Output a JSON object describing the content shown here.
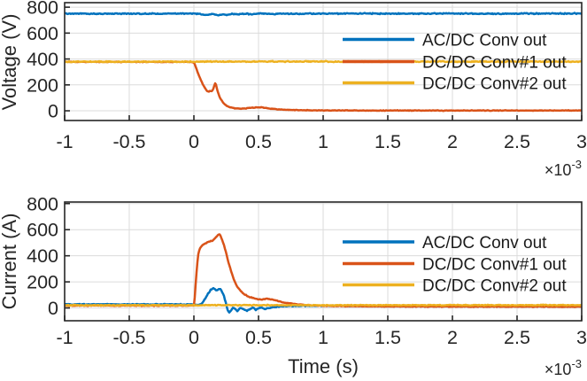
{
  "figure": {
    "background": "#ffffff",
    "axis_color": "#262626",
    "grid_color": "#dbdbdb",
    "tick_label_color": "#262626",
    "legend_text_color": "#1a1a1a"
  },
  "chart_data": [
    {
      "type": "line",
      "title": "",
      "ylabel": "Voltage (V)",
      "xlabel": "",
      "xlim": [
        -1,
        3
      ],
      "ylim": [
        -75,
        835
      ],
      "x_ticks": [
        -1,
        -0.5,
        0,
        0.5,
        1,
        1.5,
        2,
        2.5,
        3
      ],
      "x_tick_labels": [
        "-1",
        "-0.5",
        "0",
        "0.5",
        "1",
        "1.5",
        "2",
        "2.5",
        "3"
      ],
      "y_ticks": [
        0,
        200,
        400,
        600,
        800
      ],
      "y_tick_labels": [
        "0",
        "200",
        "400",
        "600",
        "800"
      ],
      "x_exponent": {
        "base": "×10",
        "power": "-3"
      },
      "x_unit": "seconds (axis values scaled by 1e-3)",
      "grid": true,
      "legend_position": "upper-right-inside",
      "series": [
        {
          "name": "AC/DC Conv out",
          "color": "#0072BD",
          "noise": 5,
          "points": [
            [
              -1,
              751
            ],
            [
              -0.7,
              749
            ],
            [
              -0.4,
              751
            ],
            [
              -0.2,
              750
            ],
            [
              -0.1,
              752
            ],
            [
              0,
              750
            ],
            [
              0.05,
              746
            ],
            [
              0.1,
              741
            ],
            [
              0.14,
              748
            ],
            [
              0.18,
              737
            ],
            [
              0.22,
              746
            ],
            [
              0.26,
              741
            ],
            [
              0.3,
              748
            ],
            [
              0.34,
              744
            ],
            [
              0.38,
              750
            ],
            [
              0.45,
              746
            ],
            [
              0.52,
              751
            ],
            [
              0.6,
              748
            ],
            [
              0.7,
              750
            ],
            [
              0.8,
              749
            ],
            [
              1,
              750
            ],
            [
              1.3,
              751
            ],
            [
              1.6,
              750
            ],
            [
              2,
              751
            ],
            [
              2.4,
              750
            ],
            [
              2.7,
              751
            ],
            [
              3,
              752
            ]
          ]
        },
        {
          "name": "DC/DC Conv#1 out",
          "color": "#D95319",
          "noise": 3,
          "points": [
            [
              -1,
              378
            ],
            [
              -0.05,
              378
            ],
            [
              0,
              374
            ],
            [
              0.01,
              352
            ],
            [
              0.02,
              322
            ],
            [
              0.035,
              282
            ],
            [
              0.05,
              246
            ],
            [
              0.065,
              213
            ],
            [
              0.08,
              184
            ],
            [
              0.095,
              161
            ],
            [
              0.105,
              151
            ],
            [
              0.115,
              147
            ],
            [
              0.125,
              157
            ],
            [
              0.132,
              150
            ],
            [
              0.14,
              153
            ],
            [
              0.15,
              170
            ],
            [
              0.158,
              193
            ],
            [
              0.165,
              215
            ],
            [
              0.172,
              200
            ],
            [
              0.18,
              163
            ],
            [
              0.19,
              130
            ],
            [
              0.2,
              105
            ],
            [
              0.215,
              78
            ],
            [
              0.23,
              58
            ],
            [
              0.25,
              40
            ],
            [
              0.27,
              30
            ],
            [
              0.3,
              22
            ],
            [
              0.33,
              17
            ],
            [
              0.36,
              16
            ],
            [
              0.4,
              19
            ],
            [
              0.44,
              23
            ],
            [
              0.48,
              26
            ],
            [
              0.52,
              26
            ],
            [
              0.56,
              22
            ],
            [
              0.6,
              16
            ],
            [
              0.65,
              11
            ],
            [
              0.7,
              8
            ],
            [
              0.8,
              5
            ],
            [
              0.9,
              4
            ],
            [
              1,
              3
            ],
            [
              1.5,
              2
            ],
            [
              2,
              2
            ],
            [
              2.5,
              2
            ],
            [
              3,
              2
            ]
          ]
        },
        {
          "name": "DC/DC Conv#2 out",
          "color": "#EDB120",
          "noise": 5,
          "points": [
            [
              -1,
              379
            ],
            [
              1,
              380
            ],
            [
              3,
              380
            ]
          ]
        }
      ]
    },
    {
      "type": "line",
      "title": "",
      "ylabel": "Current (A)",
      "xlabel": "Time (s)",
      "xlim": [
        -1,
        3
      ],
      "ylim": [
        -98,
        812
      ],
      "x_ticks": [
        -1,
        -0.5,
        0,
        0.5,
        1,
        1.5,
        2,
        2.5,
        3
      ],
      "x_tick_labels": [
        "-1",
        "-0.5",
        "0",
        "0.5",
        "1",
        "1.5",
        "2",
        "2.5",
        "3"
      ],
      "y_ticks": [
        0,
        200,
        400,
        600,
        800
      ],
      "y_tick_labels": [
        "0",
        "200",
        "400",
        "600",
        "800"
      ],
      "x_exponent": {
        "base": "×10",
        "power": "-3"
      },
      "x_unit": "seconds (axis values scaled by 1e-3)",
      "grid": true,
      "legend_position": "upper-right-inside",
      "series": [
        {
          "name": "AC/DC Conv out",
          "color": "#0072BD",
          "noise": 4,
          "points": [
            [
              -1,
              28
            ],
            [
              -0.3,
              28
            ],
            [
              0,
              27
            ],
            [
              0.03,
              22
            ],
            [
              0.05,
              25
            ],
            [
              0.07,
              45
            ],
            [
              0.09,
              75
            ],
            [
              0.11,
              110
            ],
            [
              0.13,
              140
            ],
            [
              0.15,
              152
            ],
            [
              0.165,
              140
            ],
            [
              0.18,
              133
            ],
            [
              0.195,
              146
            ],
            [
              0.21,
              142
            ],
            [
              0.23,
              100
            ],
            [
              0.25,
              30
            ],
            [
              0.262,
              -20
            ],
            [
              0.275,
              -35
            ],
            [
              0.29,
              -15
            ],
            [
              0.305,
              3
            ],
            [
              0.32,
              -10
            ],
            [
              0.335,
              -28
            ],
            [
              0.35,
              -10
            ],
            [
              0.365,
              4
            ],
            [
              0.38,
              -8
            ],
            [
              0.41,
              -22
            ],
            [
              0.44,
              -5
            ],
            [
              0.46,
              2
            ],
            [
              0.48,
              -15
            ],
            [
              0.5,
              -3
            ],
            [
              0.52,
              2
            ],
            [
              0.55,
              -8
            ],
            [
              0.58,
              0
            ],
            [
              0.62,
              6
            ],
            [
              0.68,
              12
            ],
            [
              0.75,
              15
            ],
            [
              0.85,
              17
            ],
            [
              1,
              17
            ],
            [
              1.5,
              16
            ],
            [
              2,
              16
            ],
            [
              2.5,
              17
            ],
            [
              3,
              17
            ]
          ]
        },
        {
          "name": "DC/DC Conv#1 out",
          "color": "#D95319",
          "noise": 4,
          "points": [
            [
              -1,
              18
            ],
            [
              -0.05,
              18
            ],
            [
              0,
              20
            ],
            [
              0.005,
              60
            ],
            [
              0.015,
              200
            ],
            [
              0.025,
              330
            ],
            [
              0.035,
              420
            ],
            [
              0.05,
              462
            ],
            [
              0.065,
              480
            ],
            [
              0.08,
              492
            ],
            [
              0.1,
              500
            ],
            [
              0.12,
              508
            ],
            [
              0.13,
              515
            ],
            [
              0.14,
              512
            ],
            [
              0.15,
              520
            ],
            [
              0.16,
              528
            ],
            [
              0.17,
              542
            ],
            [
              0.18,
              548
            ],
            [
              0.19,
              562
            ],
            [
              0.2,
              565
            ],
            [
              0.21,
              545
            ],
            [
              0.23,
              490
            ],
            [
              0.25,
              420
            ],
            [
              0.27,
              340
            ],
            [
              0.29,
              275
            ],
            [
              0.31,
              215
            ],
            [
              0.33,
              170
            ],
            [
              0.36,
              130
            ],
            [
              0.39,
              105
            ],
            [
              0.42,
              88
            ],
            [
              0.45,
              78
            ],
            [
              0.48,
              70
            ],
            [
              0.52,
              66
            ],
            [
              0.56,
              70
            ],
            [
              0.6,
              67
            ],
            [
              0.64,
              57
            ],
            [
              0.68,
              46
            ],
            [
              0.72,
              38
            ],
            [
              0.78,
              30
            ],
            [
              0.85,
              24
            ],
            [
              0.92,
              20
            ],
            [
              1,
              17
            ],
            [
              1.2,
              14
            ],
            [
              1.5,
              12
            ],
            [
              2,
              11
            ],
            [
              2.5,
              10
            ],
            [
              3,
              10
            ]
          ]
        },
        {
          "name": "DC/DC Conv#2 out",
          "color": "#EDB120",
          "noise": 4,
          "points": [
            [
              -1,
              21
            ],
            [
              1,
              21
            ],
            [
              3,
              22
            ]
          ]
        }
      ]
    }
  ]
}
